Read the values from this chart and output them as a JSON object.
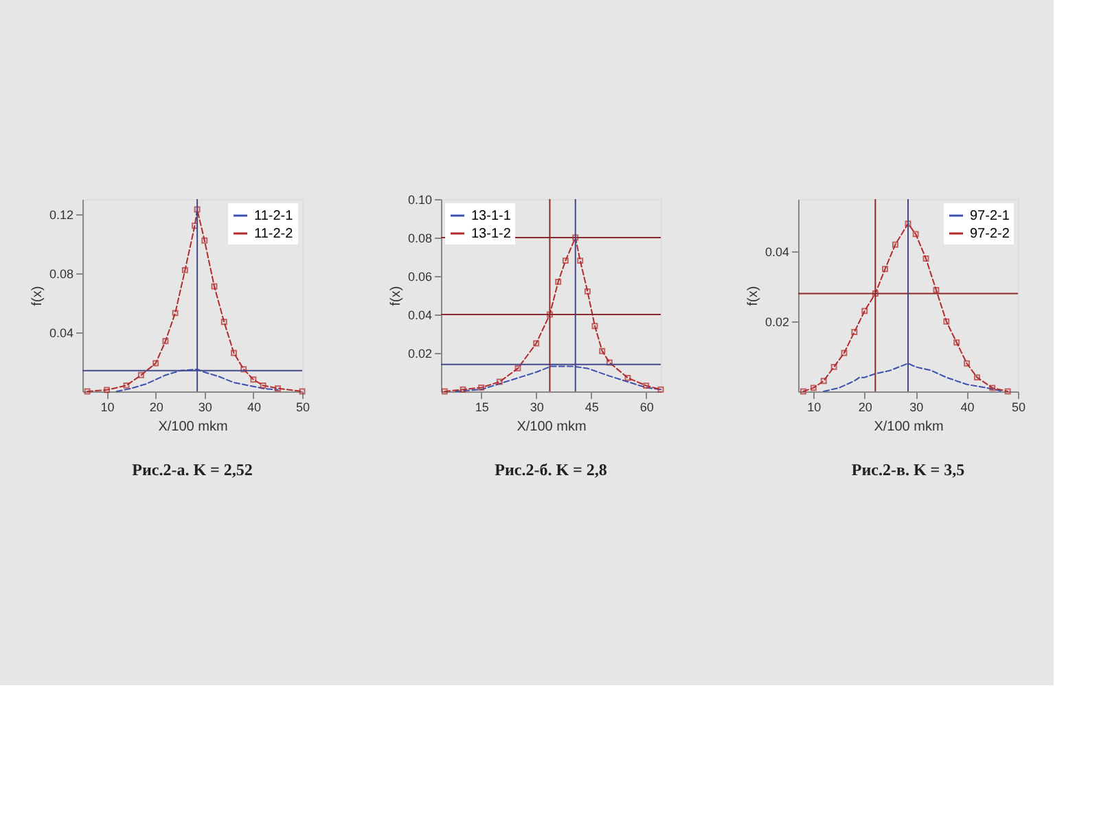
{
  "chart_data": [
    {
      "type": "line",
      "title": "Рис.2-а. K = 2,52",
      "xlabel": "X/100 mkm",
      "ylabel": "f(x)",
      "xlim": [
        5,
        50
      ],
      "xticks": [
        10,
        20,
        30,
        40,
        50
      ],
      "ylim": [
        0,
        0.13
      ],
      "yticks": [
        0.04,
        0.08,
        0.12
      ],
      "grid": false,
      "legend": "top right",
      "series": [
        {
          "name": "11-2-1",
          "color": "#3a4fb0",
          "marker": "none",
          "line_style": "dashed",
          "x": [
            12,
            15,
            18,
            20,
            22,
            25,
            28.5,
            30,
            33,
            36,
            39,
            42,
            45
          ],
          "values": [
            0,
            0.002,
            0.005,
            0.008,
            0.011,
            0.014,
            0.015,
            0.013,
            0.01,
            0.006,
            0.004,
            0.002,
            0.001
          ]
        },
        {
          "name": "11-2-2",
          "color": "#b22a2a",
          "marker": "square",
          "line_style": "dashed",
          "x": [
            6,
            10,
            14,
            17,
            20,
            22,
            24,
            26,
            28,
            28.5,
            30,
            32,
            34,
            36,
            38,
            40,
            42,
            45,
            50
          ],
          "values": [
            0,
            0.001,
            0.004,
            0.011,
            0.019,
            0.034,
            0.053,
            0.082,
            0.112,
            0.123,
            0.102,
            0.071,
            0.047,
            0.026,
            0.015,
            0.008,
            0.004,
            0.002,
            0
          ]
        }
      ],
      "ref_lines": [
        {
          "axis": "y",
          "value": 0.014,
          "color": "#404a8a"
        },
        {
          "axis": "x",
          "value": 28.5,
          "color": "#404a8a"
        }
      ]
    },
    {
      "type": "line",
      "title": "Рис.2-б. K = 2,8",
      "xlabel": "X/100 mkm",
      "ylabel": "f(x)",
      "xlim": [
        4,
        64
      ],
      "xticks": [
        15,
        30,
        45,
        60
      ],
      "ylim": [
        0,
        0.1
      ],
      "yticks": [
        0.02,
        0.04,
        0.06,
        0.08,
        {
          "value": 0.1,
          "label": "0.10"
        }
      ],
      "grid": false,
      "legend": "top left",
      "series": [
        {
          "name": "13-1-1",
          "color": "#3a4fb0",
          "marker": "none",
          "line_style": "dashed",
          "x": [
            8,
            15,
            20,
            25,
            30,
            34,
            40,
            44,
            50,
            55,
            60,
            64
          ],
          "values": [
            0,
            0.001,
            0.004,
            0.007,
            0.01,
            0.013,
            0.013,
            0.012,
            0.008,
            0.005,
            0.002,
            0.001
          ]
        },
        {
          "name": "13-1-2",
          "color": "#b22a2a",
          "marker": "square",
          "line_style": "dashed",
          "x": [
            5,
            10,
            15,
            20,
            25,
            30,
            33.7,
            36,
            38,
            40.7,
            42,
            44,
            46,
            48,
            50,
            55,
            60,
            64
          ],
          "values": [
            0,
            0.001,
            0.002,
            0.005,
            0.012,
            0.025,
            0.04,
            0.057,
            0.068,
            0.08,
            0.068,
            0.052,
            0.034,
            0.021,
            0.015,
            0.007,
            0.003,
            0.001
          ]
        }
      ],
      "ref_lines": [
        {
          "axis": "y",
          "value": 0.08,
          "color": "#8b2a2a"
        },
        {
          "axis": "y",
          "value": 0.04,
          "color": "#8b2a2a"
        },
        {
          "axis": "y",
          "value": 0.014,
          "color": "#404a8a"
        },
        {
          "axis": "x",
          "value": 33.7,
          "color": "#8b2a2a"
        },
        {
          "axis": "x",
          "value": 40.7,
          "color": "#404a8a"
        }
      ]
    },
    {
      "type": "line",
      "title": "Рис.2-в. K = 3,5",
      "xlabel": "X/100 mkm",
      "ylabel": "f(x)",
      "xlim": [
        7,
        50
      ],
      "xticks": [
        10,
        20,
        30,
        40,
        50
      ],
      "ylim": [
        0,
        0.055
      ],
      "yticks": [
        0.02,
        0.04
      ],
      "grid": false,
      "legend": "top right",
      "series": [
        {
          "name": "97-2-1",
          "color": "#3a4fb0",
          "marker": "none",
          "line_style": "dashed",
          "x": [
            12,
            15,
            18,
            19,
            20,
            22,
            25,
            28.5,
            30,
            33,
            36,
            40,
            44,
            47
          ],
          "values": [
            0,
            0.001,
            0.003,
            0.004,
            0.004,
            0.005,
            0.006,
            0.008,
            0.007,
            0.006,
            0.004,
            0.002,
            0.001,
            0
          ]
        },
        {
          "name": "97-2-2",
          "color": "#b22a2a",
          "marker": "square",
          "line_style": "dashed",
          "x": [
            8,
            10,
            12,
            14,
            16,
            18,
            20,
            22.1,
            24,
            26,
            28.5,
            30,
            32,
            34,
            36,
            38,
            40,
            42,
            45,
            48
          ],
          "values": [
            0,
            0.001,
            0.003,
            0.007,
            0.011,
            0.017,
            0.023,
            0.028,
            0.035,
            0.042,
            0.048,
            0.045,
            0.038,
            0.029,
            0.02,
            0.014,
            0.008,
            0.004,
            0.001,
            0
          ]
        }
      ],
      "ref_lines": [
        {
          "axis": "y",
          "value": 0.028,
          "color": "#8b2a2a"
        },
        {
          "axis": "x",
          "value": 22.1,
          "color": "#8b2a2a"
        },
        {
          "axis": "x",
          "value": 28.5,
          "color": "#404a8a"
        }
      ]
    }
  ]
}
